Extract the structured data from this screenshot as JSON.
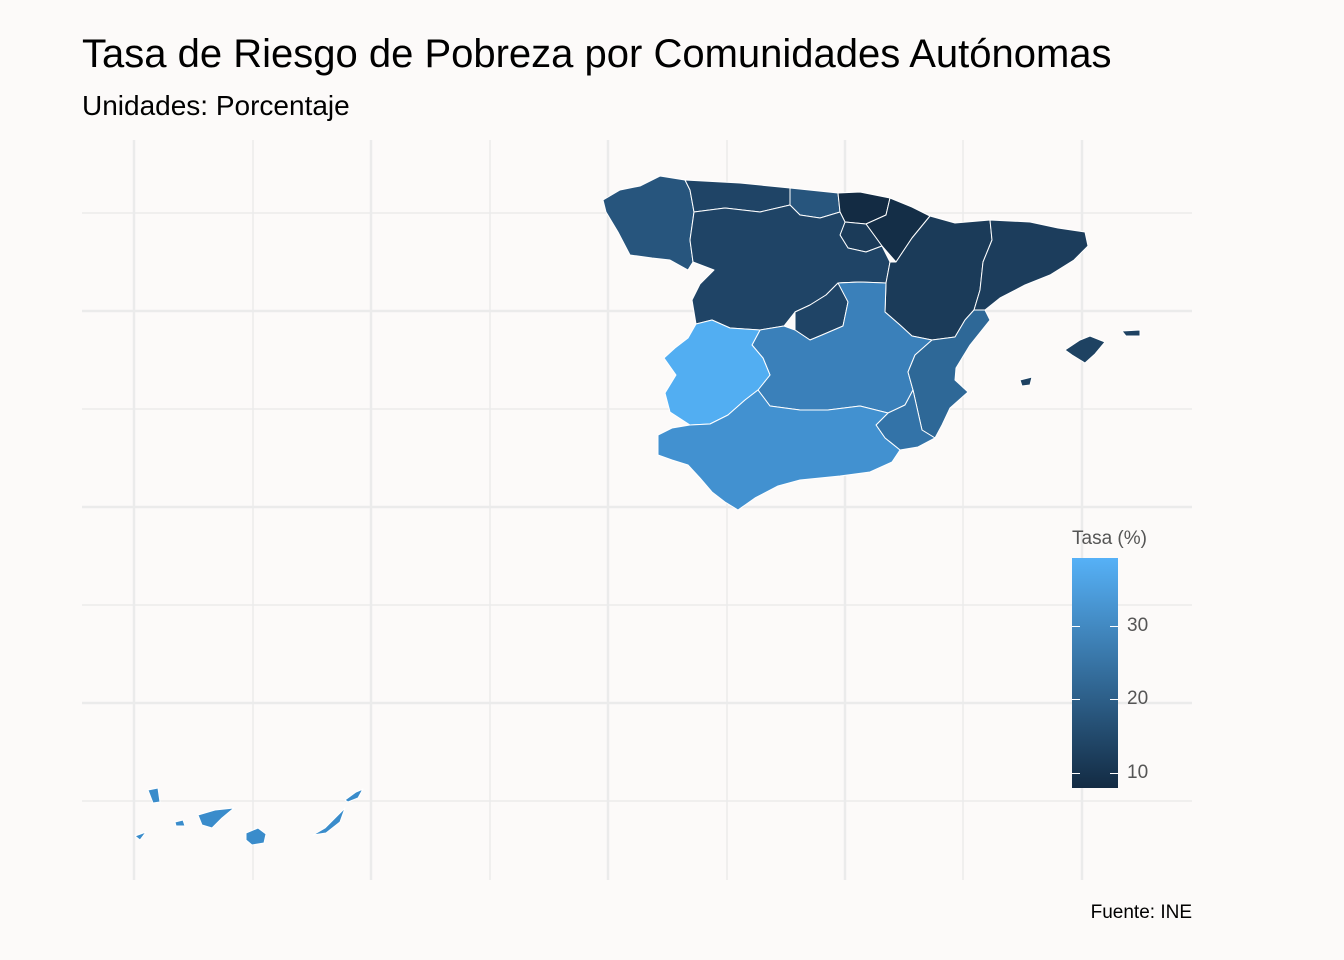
{
  "title": "Tasa de Riesgo de Pobreza por Comunidades Autónomas",
  "subtitle": "Unidades: Porcentaje",
  "caption": "Fuente: INE",
  "legend": {
    "title": "Tasa (%)",
    "ticks": [
      "30",
      "20",
      "10"
    ],
    "color_low": "#132b43",
    "color_high": "#56b1f7"
  },
  "chart_data": {
    "type": "choropleth",
    "grid": true,
    "legend_position": "right",
    "scale": {
      "min_color": "#132b43",
      "max_color": "#56b1f7",
      "ticks": [
        10,
        20,
        30
      ]
    }
  }
}
